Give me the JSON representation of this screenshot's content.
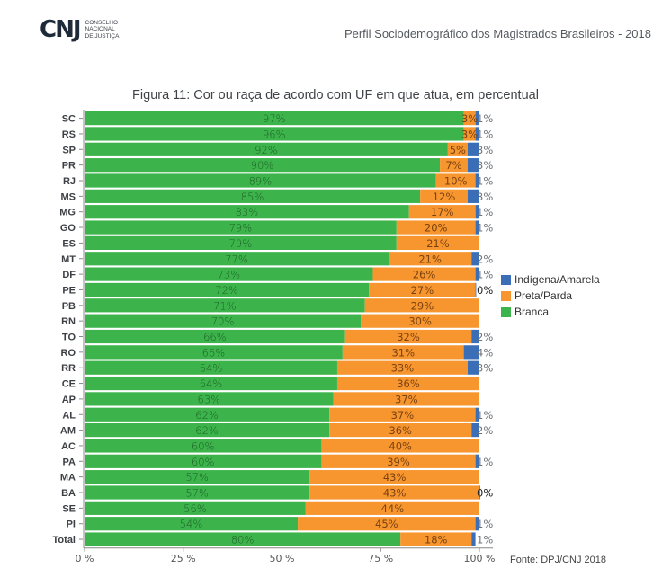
{
  "header": {
    "org_logo_abbr": "CNJ",
    "org_logo_lines": [
      "Conselho",
      "Nacional",
      "de Justiça"
    ],
    "title": "Perfil Sociodemográfico dos Magistrados Brasileiros - 2018"
  },
  "source": "Fonte: DPJ/CNJ 2018",
  "colors": {
    "branca": "#3cb44b",
    "preta_parda": "#f7962f",
    "indigena_amarela": "#3a6fb7",
    "branca_label": "#1d5e26",
    "preta_label": "#7a4210",
    "indigena_label": "#6f7378"
  },
  "chart_data": {
    "type": "bar",
    "orientation": "horizontal",
    "stacked": true,
    "title": "Figura 11: Cor ou raça de acordo com UF em que atua, em percentual",
    "xlabel": "",
    "ylabel": "",
    "xlim": [
      0,
      100
    ],
    "x_ticks": [
      "0 %",
      "25 %",
      "50 %",
      "75 %",
      "100 %"
    ],
    "legend_position": "right",
    "categories": [
      "SC",
      "RS",
      "SP",
      "PR",
      "RJ",
      "MS",
      "MG",
      "GO",
      "ES",
      "MT",
      "DF",
      "PE",
      "PB",
      "RN",
      "TO",
      "RO",
      "RR",
      "CE",
      "AP",
      "AL",
      "AM",
      "AC",
      "PA",
      "MA",
      "BA",
      "SE",
      "PI",
      "Total"
    ],
    "series": [
      {
        "name": "Branca",
        "key": "branca",
        "values": [
          97,
          96,
          92,
          90,
          89,
          85,
          83,
          79,
          79,
          77,
          73,
          72,
          71,
          70,
          66,
          66,
          64,
          64,
          63,
          62,
          62,
          60,
          60,
          57,
          57,
          56,
          54,
          80
        ]
      },
      {
        "name": "Preta/Parda",
        "key": "preta_parda",
        "values": [
          3,
          3,
          5,
          7,
          10,
          12,
          17,
          20,
          21,
          21,
          26,
          27,
          29,
          30,
          32,
          31,
          33,
          36,
          37,
          37,
          36,
          40,
          39,
          43,
          43,
          44,
          45,
          18
        ]
      },
      {
        "name": "Indígena/Amarela",
        "key": "indigena_amarela",
        "values": [
          1,
          1,
          3,
          3,
          1,
          3,
          1,
          1,
          null,
          2,
          1,
          0,
          null,
          null,
          2,
          4,
          3,
          null,
          null,
          1,
          2,
          null,
          1,
          null,
          0,
          null,
          1,
          1
        ]
      }
    ],
    "legend": [
      "Indígena/Amarela",
      "Preta/Parda",
      "Branca"
    ]
  }
}
